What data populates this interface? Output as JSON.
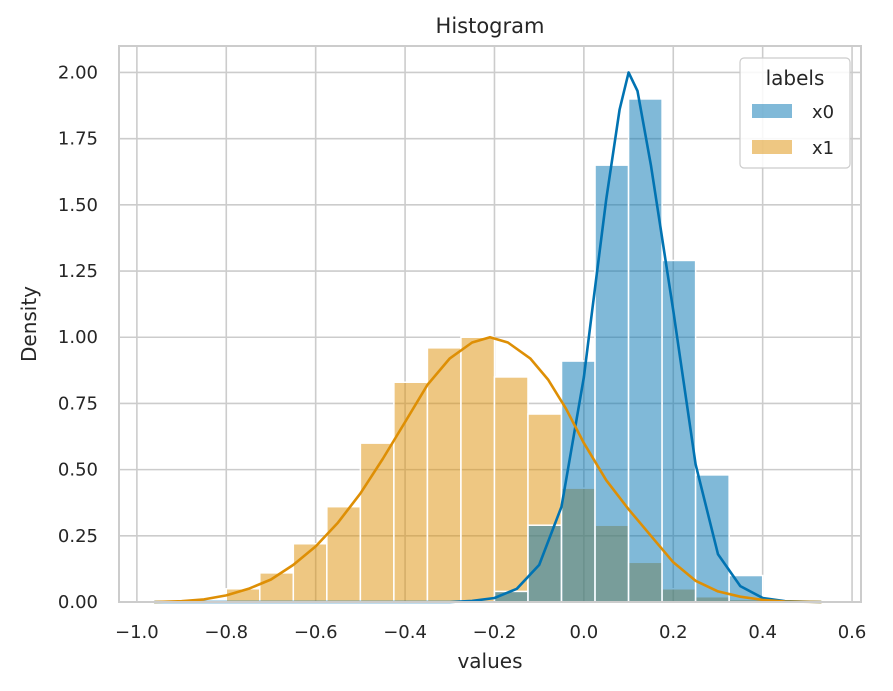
{
  "chart_data": {
    "type": "histogram",
    "title": "Histogram",
    "xlabel": "values",
    "ylabel": "Density",
    "xlim": [
      -1.04,
      0.62
    ],
    "ylim": [
      0,
      2.1
    ],
    "xticks": [
      -1.0,
      -0.8,
      -0.6,
      -0.4,
      -0.2,
      0.0,
      0.2,
      0.4,
      0.6
    ],
    "xtick_labels": [
      "−1.0",
      "−0.8",
      "−0.6",
      "−0.4",
      "−0.2",
      "0.0",
      "0.2",
      "0.4",
      "0.6"
    ],
    "yticks": [
      0,
      0.25,
      0.5,
      0.75,
      1.0,
      1.25,
      1.5,
      1.75,
      2.0
    ],
    "ytick_labels": [
      "0.00",
      "0.25",
      "0.50",
      "0.75",
      "1.00",
      "1.25",
      "1.50",
      "1.75",
      "2.00"
    ],
    "grid": true,
    "legend": {
      "title": "labels",
      "position": "top-right"
    },
    "bin_edges": [
      -0.8,
      -0.725,
      -0.65,
      -0.575,
      -0.5,
      -0.425,
      -0.35,
      -0.275,
      -0.2,
      -0.125,
      -0.05,
      0.025,
      0.1,
      0.175,
      0.25,
      0.325,
      0.4
    ],
    "series": [
      {
        "name": "x0",
        "color": "#0173b2",
        "bar_opacity": 0.5,
        "densities": [
          0,
          0,
          0,
          0,
          0,
          0,
          0,
          0,
          0.04,
          0.29,
          0.91,
          1.65,
          1.9,
          1.29,
          0.48,
          0.1
        ],
        "kde": [
          [
            -0.96,
            0
          ],
          [
            -0.3,
            0
          ],
          [
            -0.25,
            0.004
          ],
          [
            -0.2,
            0.015
          ],
          [
            -0.15,
            0.05
          ],
          [
            -0.1,
            0.14
          ],
          [
            -0.05,
            0.36
          ],
          [
            0.0,
            0.85
          ],
          [
            0.02,
            1.12
          ],
          [
            0.05,
            1.52
          ],
          [
            0.08,
            1.86
          ],
          [
            0.1,
            2.0
          ],
          [
            0.12,
            1.93
          ],
          [
            0.15,
            1.65
          ],
          [
            0.2,
            1.1
          ],
          [
            0.25,
            0.52
          ],
          [
            0.3,
            0.18
          ],
          [
            0.35,
            0.06
          ],
          [
            0.4,
            0.015
          ],
          [
            0.45,
            0.003
          ],
          [
            0.53,
            0
          ]
        ]
      },
      {
        "name": "x1",
        "color": "#de8f05",
        "bar_opacity": 0.5,
        "densities": [
          0.05,
          0.11,
          0.22,
          0.36,
          0.6,
          0.83,
          0.96,
          1.0,
          0.85,
          0.71,
          0.43,
          0.29,
          0.15,
          0.05,
          0.02,
          0.01
        ],
        "kde": [
          [
            -0.96,
            0
          ],
          [
            -0.9,
            0.003
          ],
          [
            -0.85,
            0.01
          ],
          [
            -0.8,
            0.025
          ],
          [
            -0.75,
            0.05
          ],
          [
            -0.7,
            0.085
          ],
          [
            -0.65,
            0.14
          ],
          [
            -0.6,
            0.21
          ],
          [
            -0.55,
            0.3
          ],
          [
            -0.5,
            0.41
          ],
          [
            -0.45,
            0.54
          ],
          [
            -0.4,
            0.68
          ],
          [
            -0.35,
            0.82
          ],
          [
            -0.3,
            0.92
          ],
          [
            -0.25,
            0.98
          ],
          [
            -0.21,
            1.0
          ],
          [
            -0.17,
            0.98
          ],
          [
            -0.12,
            0.92
          ],
          [
            -0.08,
            0.84
          ],
          [
            -0.04,
            0.73
          ],
          [
            0.0,
            0.6
          ],
          [
            0.05,
            0.46
          ],
          [
            0.1,
            0.35
          ],
          [
            0.15,
            0.25
          ],
          [
            0.2,
            0.15
          ],
          [
            0.25,
            0.08
          ],
          [
            0.3,
            0.04
          ],
          [
            0.35,
            0.02
          ],
          [
            0.4,
            0.008
          ],
          [
            0.45,
            0.002
          ],
          [
            0.53,
            0
          ]
        ]
      }
    ]
  }
}
